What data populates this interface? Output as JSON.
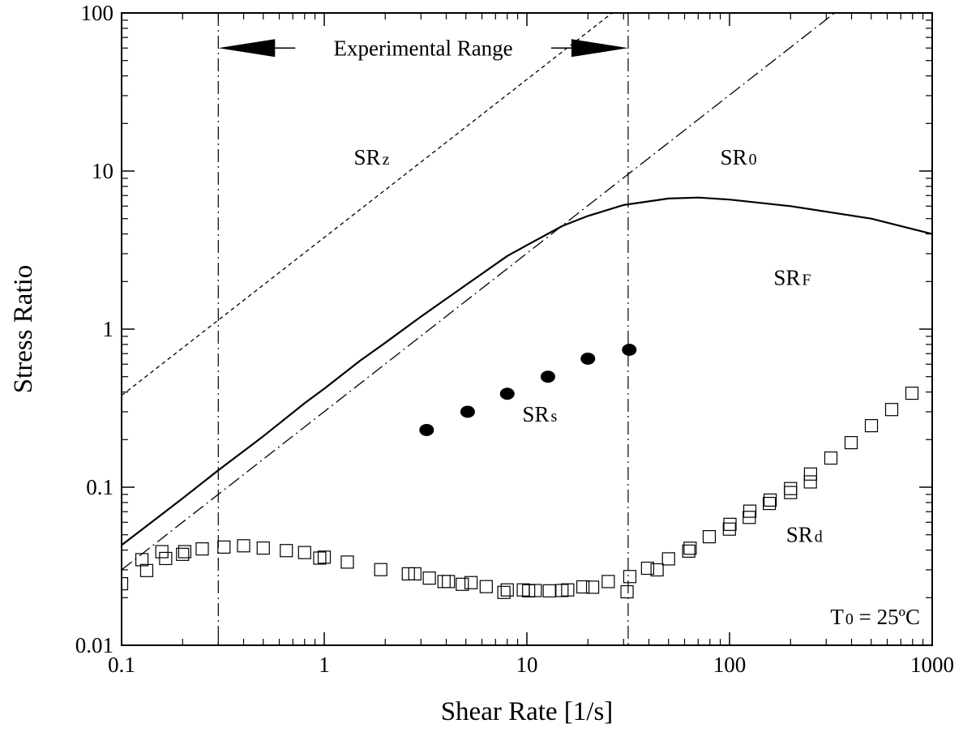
{
  "chart_data": {
    "type": "scatter",
    "xlabel": "Shear Rate [1/s]",
    "ylabel": "Stress Ratio",
    "xscale": "log",
    "yscale": "log",
    "xlim": [
      0.1,
      1000
    ],
    "ylim": [
      0.01,
      100
    ],
    "xticks": [
      {
        "value": 0.1,
        "label": "0.1"
      },
      {
        "value": 1,
        "label": "1"
      },
      {
        "value": 10,
        "label": "10"
      },
      {
        "value": 100,
        "label": "100"
      },
      {
        "value": 1000,
        "label": "1000"
      }
    ],
    "yticks": [
      {
        "value": 0.01,
        "label": "0.01"
      },
      {
        "value": 0.1,
        "label": "0.1"
      },
      {
        "value": 1,
        "label": "1"
      },
      {
        "value": 10,
        "label": "10"
      },
      {
        "value": 100,
        "label": "100"
      }
    ],
    "grid": false,
    "vertical_markers": [
      0.3,
      31.6
    ],
    "experimental_range": {
      "label": "Experimental Range",
      "from": 0.3,
      "to": 31.6
    },
    "temperature_label": {
      "base": "T",
      "sub": "0",
      "rest": " = 25ºC"
    },
    "series": [
      {
        "label": {
          "base": "SR",
          "sub": "z"
        },
        "label_at": [
          1.4,
          11
        ],
        "style": "dashed",
        "x": [
          0.1,
          31.6
        ],
        "y": [
          0.38,
          120
        ]
      },
      {
        "label": {
          "base": "SR",
          "sub": "0"
        },
        "label_at": [
          90,
          11
        ],
        "style": "dash-dot",
        "x": [
          0.1,
          330
        ],
        "y": [
          0.03,
          100
        ]
      },
      {
        "label": {
          "base": "SR",
          "sub": "F"
        },
        "label_at": [
          165,
          1.9
        ],
        "style": "solid",
        "x": [
          0.1,
          0.2,
          0.3,
          0.5,
          0.8,
          1,
          1.5,
          2,
          3,
          5,
          8,
          10,
          15,
          20,
          30,
          50,
          70,
          100,
          200,
          500,
          1000
        ],
        "y": [
          0.043,
          0.085,
          0.128,
          0.21,
          0.34,
          0.42,
          0.63,
          0.82,
          1.2,
          1.9,
          2.9,
          3.4,
          4.5,
          5.2,
          6.1,
          6.7,
          6.8,
          6.6,
          6.0,
          5.0,
          4.0
        ]
      },
      {
        "label": {
          "base": "SR",
          "sub": "s"
        },
        "label_at": [
          9.5,
          0.26
        ],
        "style": "filled-circle",
        "x": [
          3.2,
          5.1,
          8.0,
          12.7,
          20.0,
          32.0
        ],
        "y": [
          0.23,
          0.3,
          0.39,
          0.5,
          0.65,
          0.74
        ]
      },
      {
        "label": {
          "base": "SR",
          "sub": "d"
        },
        "label_at": [
          190,
          0.045
        ],
        "style": "open-square",
        "x": [
          0.1,
          0.126,
          0.133,
          0.158,
          0.165,
          0.2,
          0.205,
          0.25,
          0.32,
          0.4,
          0.5,
          0.65,
          0.8,
          0.95,
          1.0,
          1.3,
          1.9,
          2.6,
          2.8,
          3.3,
          3.9,
          4.1,
          4.8,
          5.3,
          6.3,
          7.7,
          8.0,
          9.6,
          10.2,
          11.0,
          12.9,
          14.9,
          15.9,
          18.9,
          21.1,
          25.2,
          31.2,
          32.2,
          39.4,
          43.9,
          50.0,
          62.9,
          63.9,
          79.4,
          99.8,
          100.5,
          125.1,
          125.9,
          157.2,
          158.7,
          200.0,
          200.0,
          250.5,
          251.0,
          316.2,
          398.1,
          501.2,
          631.0,
          794.3
        ],
        "y": [
          0.0245,
          0.0348,
          0.0297,
          0.0391,
          0.0354,
          0.0376,
          0.0391,
          0.0407,
          0.0418,
          0.0426,
          0.0412,
          0.0397,
          0.0386,
          0.0356,
          0.0361,
          0.0336,
          0.0301,
          0.0283,
          0.0283,
          0.0266,
          0.0253,
          0.0253,
          0.0243,
          0.0249,
          0.0235,
          0.0216,
          0.0224,
          0.0224,
          0.0221,
          0.0222,
          0.0221,
          0.0222,
          0.0224,
          0.0234,
          0.0233,
          0.0253,
          0.0218,
          0.0272,
          0.0307,
          0.03,
          0.0352,
          0.0394,
          0.0411,
          0.0486,
          0.0543,
          0.0582,
          0.0644,
          0.0705,
          0.0789,
          0.0829,
          0.0925,
          0.098,
          0.108,
          0.1211,
          0.1529,
          0.1913,
          0.245,
          0.3099,
          0.3931
        ]
      }
    ]
  }
}
